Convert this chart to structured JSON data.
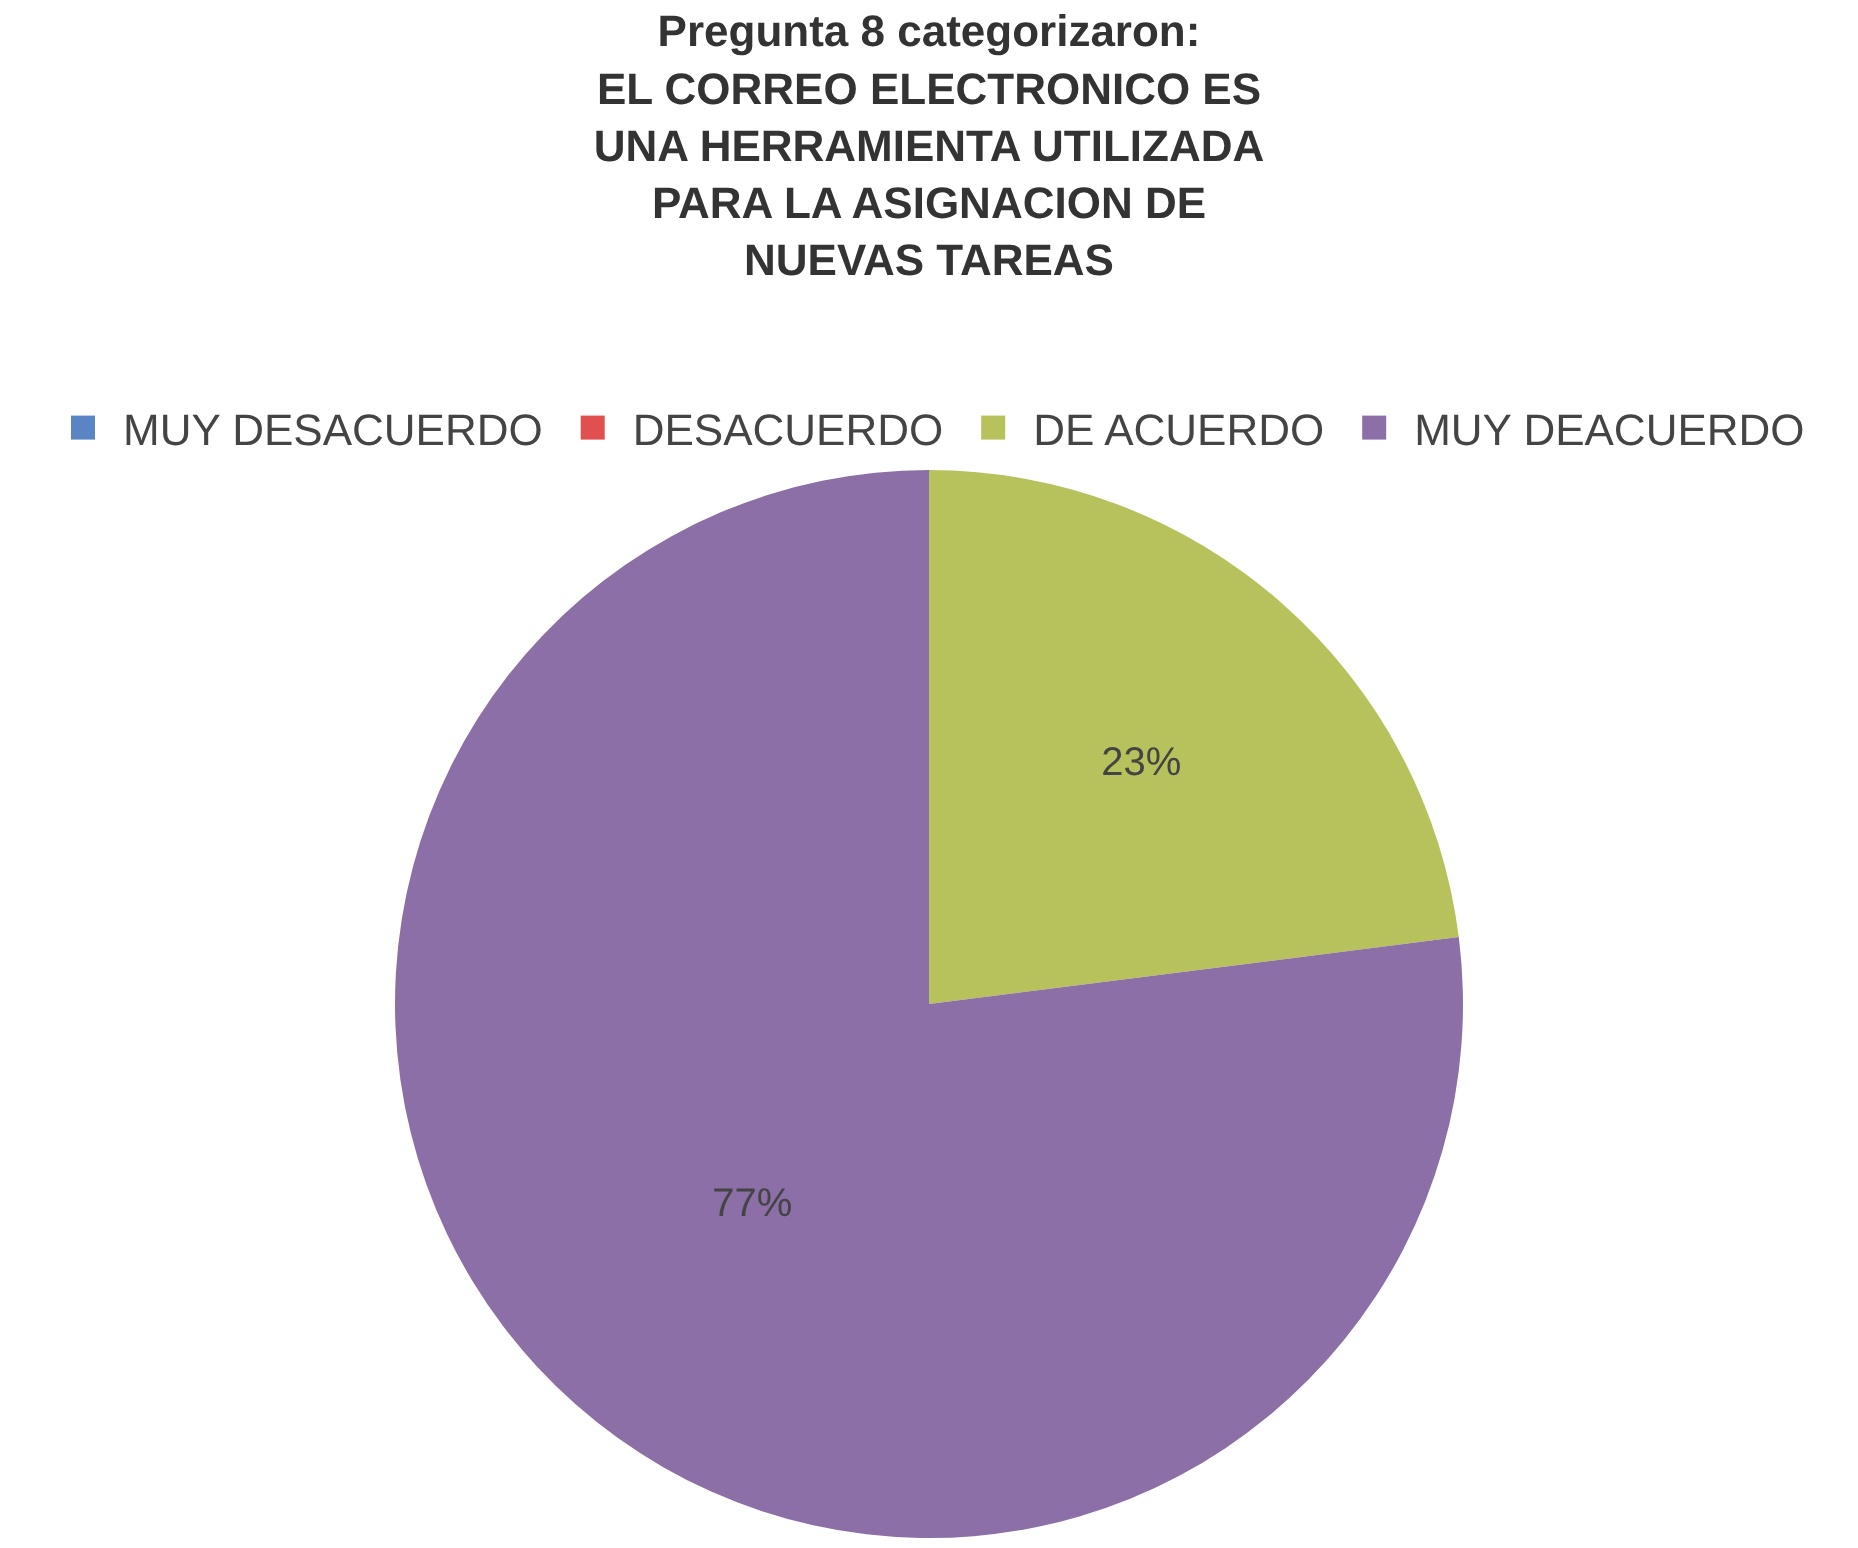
{
  "chart_data": {
    "type": "pie",
    "title": "Pregunta 8 categorizaron:\nEL CORREO ELECTRONICO ES\nUNA HERRAMIENTA UTILIZADA\nPARA LA ASIGNACION DE\nNUEVAS TAREAS",
    "categories": [
      "MUY DESACUERDO",
      "DESACUERDO",
      "DE ACUERDO",
      "MUY DEACUERDO"
    ],
    "values": [
      0,
      0,
      23,
      77
    ],
    "value_labels": [
      null,
      null,
      "23%",
      "77%"
    ],
    "colors": [
      "#5b84c4",
      "#e0504f",
      "#b8c25c",
      "#8b6fa6"
    ],
    "legend": "top"
  }
}
